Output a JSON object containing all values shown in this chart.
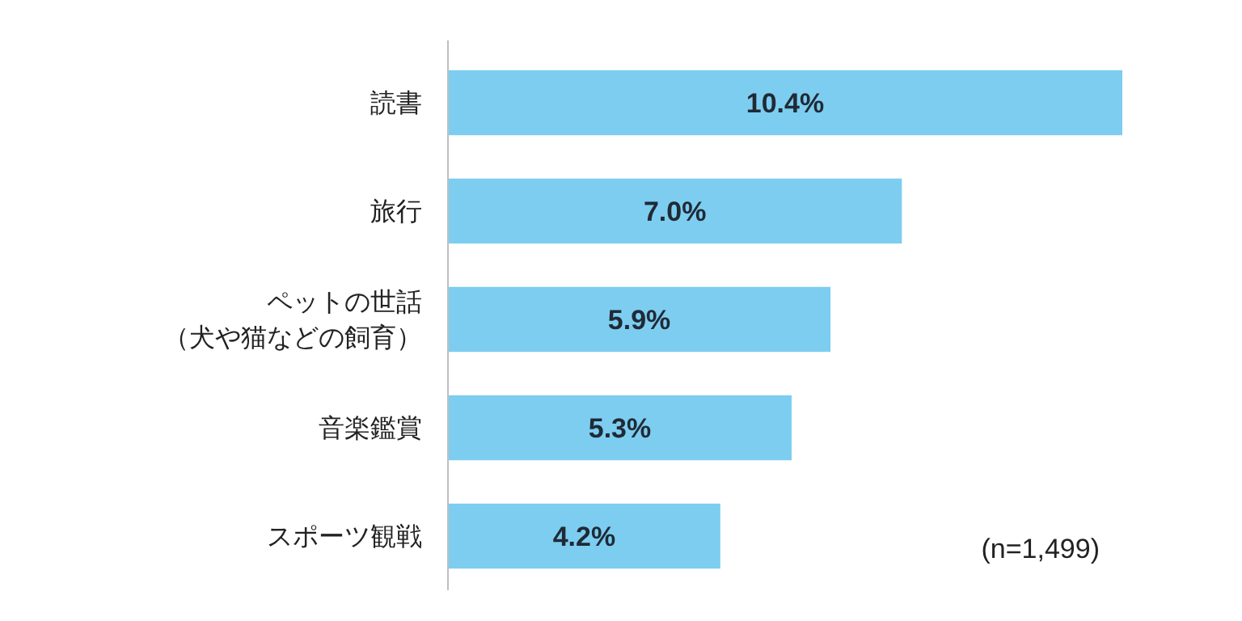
{
  "chart_data": {
    "type": "bar",
    "orientation": "horizontal",
    "categories": [
      "読書",
      "旅行",
      "ペットの世話（犬や猫などの飼育）",
      "音楽鑑賞",
      "スポーツ観戦"
    ],
    "values": [
      10.4,
      7.0,
      5.9,
      5.3,
      4.2
    ],
    "value_labels": [
      "10.4%",
      "7.0%",
      "5.9%",
      "5.3%",
      "4.2%"
    ],
    "color": "#7dcdf0",
    "annotations": [
      "(n=1,499)"
    ]
  }
}
